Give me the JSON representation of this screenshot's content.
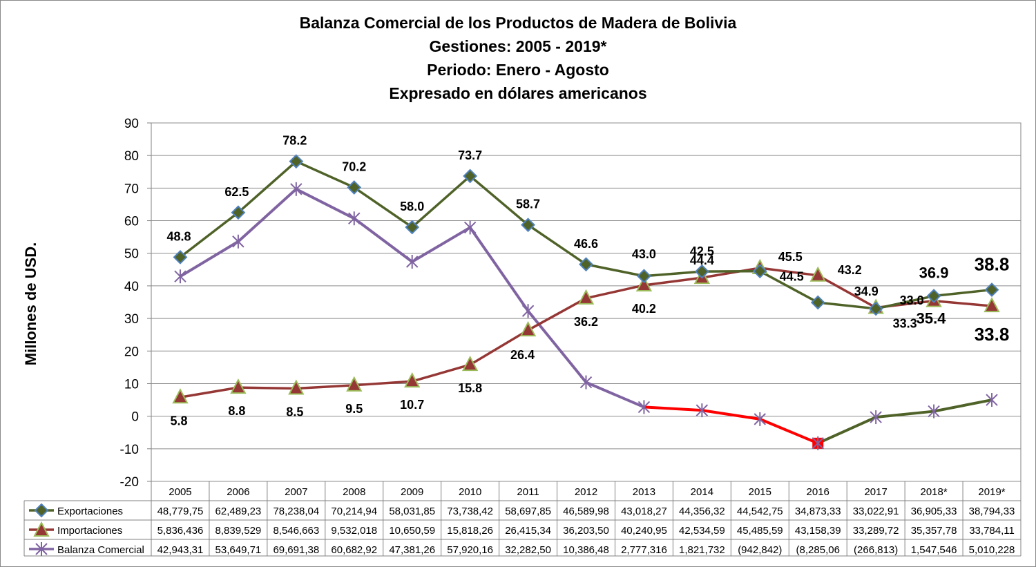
{
  "chart_data": {
    "type": "line",
    "title_lines": [
      "Balanza Comercial de los Productos de Madera de Bolivia",
      "Gestiones: 2005 - 2019*",
      "Periodo: Enero - Agosto",
      "Expresado en dólares americanos"
    ],
    "ylabel": "Millones de USD.",
    "xlabel": "",
    "ylim": [
      -20,
      90
    ],
    "yticks": [
      "90",
      "80",
      "70",
      "60",
      "50",
      "40",
      "30",
      "20",
      "10",
      "0",
      "-10",
      "-20"
    ],
    "categories": [
      "2005",
      "2006",
      "2007",
      "2008",
      "2009",
      "2010",
      "2011",
      "2012",
      "2013",
      "2014",
      "2015",
      "2016",
      "2017",
      "2018*",
      "2019*"
    ],
    "grid": "horizontal",
    "legend": "data-table-below",
    "series": [
      {
        "name": "Exportaciones",
        "color": "#4F6228",
        "marker": "diamond",
        "values": [
          48.8,
          62.5,
          78.2,
          70.2,
          58.0,
          73.7,
          58.7,
          46.6,
          43.0,
          44.4,
          44.5,
          34.9,
          33.0,
          36.9,
          38.8
        ],
        "labels": [
          "48.8",
          "62.5",
          "78.2",
          "70.2",
          "58.0",
          "73.7",
          "58.7",
          "46.6",
          "43.0",
          "44.4",
          "44.5",
          "34.9",
          "33.0",
          "36.9",
          "38.8"
        ],
        "table": [
          "48,779,75",
          "62,489,23",
          "78,238,04",
          "70,214,94",
          "58,031,85",
          "73,738,42",
          "58,697,85",
          "46,589,98",
          "43,018,27",
          "44,356,32",
          "44,542,75",
          "34,873,33",
          "33,022,91",
          "36,905,33",
          "38,794,33"
        ]
      },
      {
        "name": "Importaciones",
        "color": "#953735",
        "marker": "triangle",
        "values": [
          5.8,
          8.8,
          8.5,
          9.5,
          10.7,
          15.8,
          26.4,
          36.2,
          40.2,
          42.5,
          45.5,
          43.2,
          33.3,
          35.4,
          33.8
        ],
        "labels": [
          "5.8",
          "8.8",
          "8.5",
          "9.5",
          "10.7",
          "15.8",
          "26.4",
          "36.2",
          "40.2",
          "42.5",
          "45.5",
          "43.2",
          "33.3",
          "35.4",
          "33.8"
        ],
        "table": [
          "5,836,436",
          "8,839,529",
          "8,546,663",
          "9,532,018",
          "10,650,59",
          "15,818,26",
          "26,415,34",
          "36,203,50",
          "40,240,95",
          "42,534,59",
          "45,485,59",
          "43,158,39",
          "33,289,72",
          "35,357,78",
          "33,784,11"
        ]
      },
      {
        "name": "Balanza Comercial",
        "color": "#8064A2",
        "marker": "star",
        "values": [
          42.9,
          53.6,
          69.7,
          60.7,
          47.4,
          57.9,
          32.3,
          10.4,
          2.8,
          1.8,
          -0.9,
          -8.3,
          -0.3,
          1.5,
          5.0
        ],
        "table": [
          "42,943,31",
          "53,649,71",
          "69,691,38",
          "60,682,92",
          "47,381,26",
          "57,920,16",
          "32,282,50",
          "10,386,48",
          "2,777,316",
          "1,821,732",
          "(942,842)",
          "(8,285,06",
          "(266,813)",
          "1,547,546",
          "5,010,228"
        ],
        "segment_colors": {
          "negative": "#FF0000",
          "recovery": "#4F6228"
        }
      }
    ]
  }
}
